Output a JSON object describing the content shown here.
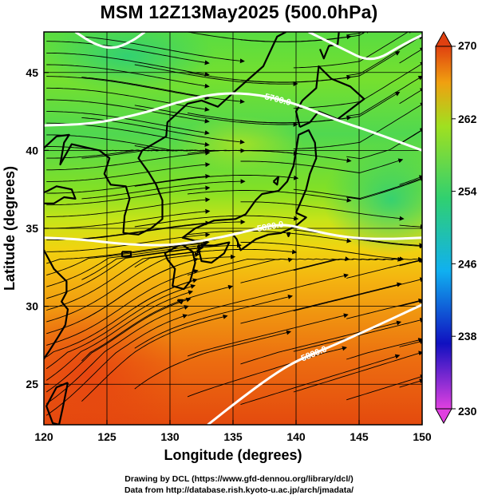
{
  "chart_data": {
    "type": "heatmap",
    "title": "MSM 12Z13May2025 (500.0hPa)",
    "xlabel": "Longitude (degrees)",
    "ylabel": "Latitude  (degrees)",
    "xlim": [
      120,
      150
    ],
    "ylim": [
      22.4,
      47.6
    ],
    "x_ticks": [
      120,
      125,
      130,
      135,
      140,
      145,
      150
    ],
    "y_ticks": [
      25,
      30,
      35,
      40,
      45
    ],
    "colorbar": {
      "min": 230,
      "max": 270,
      "ticks": [
        230,
        238,
        246,
        254,
        262,
        270
      ],
      "colors": [
        "#e040e0",
        "#1010c0",
        "#10b0f0",
        "#30d070",
        "#a0e020",
        "#f0a010",
        "#e04010"
      ]
    },
    "contours": [
      {
        "label": "5700.0",
        "points": [
          [
            120,
            41.6
          ],
          [
            124,
            41.7
          ],
          [
            128,
            42.4
          ],
          [
            131,
            43.2
          ],
          [
            134,
            43.7
          ],
          [
            137,
            43.6
          ],
          [
            140,
            43.0
          ],
          [
            143,
            42.0
          ],
          [
            146,
            41.2
          ],
          [
            150,
            40.0
          ]
        ]
      },
      {
        "label": "5820.0",
        "points": [
          [
            120,
            34.4
          ],
          [
            123,
            34.3
          ],
          [
            126,
            34.0
          ],
          [
            129,
            33.9
          ],
          [
            131,
            34.0
          ],
          [
            134,
            34.4
          ],
          [
            137,
            35.0
          ],
          [
            139,
            35.3
          ],
          [
            141,
            34.9
          ],
          [
            144,
            34.4
          ],
          [
            147,
            34.3
          ],
          [
            150,
            34.4
          ]
        ]
      },
      {
        "label": "5880.0",
        "points": [
          [
            133,
            22.4
          ],
          [
            135.5,
            24.0
          ],
          [
            138,
            25.5
          ],
          [
            140,
            26.5
          ],
          [
            143,
            27.5
          ],
          [
            146,
            28.6
          ],
          [
            150,
            30.1
          ]
        ]
      },
      {
        "label": "",
        "points": [
          [
            122.5,
            47.6
          ],
          [
            124,
            46.8
          ],
          [
            125.5,
            46.5
          ],
          [
            127,
            47.0
          ],
          [
            128,
            47.6
          ]
        ]
      },
      {
        "label": "",
        "points": [
          [
            141,
            47.6
          ],
          [
            143.5,
            46.6
          ],
          [
            146,
            45.6
          ],
          [
            148.5,
            46.8
          ],
          [
            150,
            47.4
          ]
        ]
      }
    ],
    "coastline_points": [
      [
        [
          140.0,
          36.0
        ],
        [
          140.8,
          37.5
        ],
        [
          141.1,
          38.5
        ],
        [
          141.6,
          39.5
        ],
        [
          141.5,
          40.5
        ],
        [
          141.0,
          41.3
        ],
        [
          140.2,
          41.0
        ],
        [
          140.0,
          40.0
        ],
        [
          139.8,
          39.0
        ],
        [
          139.3,
          38.0
        ],
        [
          138.6,
          37.4
        ],
        [
          137.3,
          37.2
        ],
        [
          136.8,
          36.8
        ],
        [
          136.0,
          35.9
        ],
        [
          135.2,
          35.6
        ],
        [
          133.5,
          35.5
        ],
        [
          132.0,
          35.0
        ],
        [
          131.0,
          34.4
        ],
        [
          132.0,
          34.2
        ],
        [
          133.5,
          34.3
        ],
        [
          135.0,
          34.6
        ],
        [
          135.3,
          34.3
        ],
        [
          135.6,
          33.6
        ],
        [
          136.8,
          34.3
        ],
        [
          137.8,
          34.6
        ],
        [
          138.8,
          34.7
        ],
        [
          139.9,
          35.1
        ],
        [
          140.8,
          35.7
        ],
        [
          140.0,
          36.0
        ]
      ],
      [
        [
          130.9,
          34.0
        ],
        [
          131.8,
          33.5
        ],
        [
          132.0,
          32.8
        ],
        [
          131.6,
          31.6
        ],
        [
          131.1,
          31.1
        ],
        [
          130.2,
          31.3
        ],
        [
          130.4,
          32.4
        ],
        [
          129.8,
          33.0
        ],
        [
          129.6,
          33.4
        ],
        [
          130.9,
          34.0
        ]
      ],
      [
        [
          132.2,
          33.9
        ],
        [
          133.5,
          33.9
        ],
        [
          134.7,
          34.1
        ],
        [
          134.3,
          33.4
        ],
        [
          133.3,
          32.8
        ],
        [
          132.5,
          32.9
        ],
        [
          132.2,
          33.9
        ]
      ],
      [
        [
          140.3,
          41.5
        ],
        [
          141.1,
          41.8
        ],
        [
          141.8,
          42.5
        ],
        [
          143.3,
          42.0
        ],
        [
          145.4,
          43.3
        ],
        [
          144.3,
          44.1
        ],
        [
          142.8,
          44.6
        ],
        [
          141.8,
          45.4
        ],
        [
          141.6,
          44.0
        ],
        [
          140.5,
          43.2
        ],
        [
          140.0,
          42.5
        ],
        [
          140.3,
          41.5
        ]
      ],
      [
        [
          126.3,
          34.7
        ],
        [
          127.5,
          34.6
        ],
        [
          128.5,
          35.0
        ],
        [
          129.4,
          35.6
        ],
        [
          129.4,
          36.8
        ],
        [
          128.9,
          37.8
        ],
        [
          128.3,
          38.6
        ],
        [
          127.5,
          39.5
        ],
        [
          127.8,
          40.0
        ],
        [
          129.7,
          40.9
        ],
        [
          129.8,
          41.8
        ],
        [
          130.6,
          42.4
        ],
        [
          131.4,
          43.0
        ],
        [
          132.5,
          43.2
        ],
        [
          133.8,
          42.8
        ],
        [
          135.3,
          43.9
        ],
        [
          137.4,
          45.4
        ],
        [
          138.5,
          47.3
        ],
        [
          139.2,
          47.6
        ]
      ],
      [
        [
          126.3,
          34.7
        ],
        [
          126.4,
          35.8
        ],
        [
          126.8,
          36.9
        ],
        [
          126.5,
          37.7
        ],
        [
          125.3,
          37.8
        ],
        [
          124.8,
          38.5
        ],
        [
          125.2,
          39.5
        ],
        [
          124.4,
          40.0
        ],
        [
          122.2,
          40.4
        ],
        [
          121.3,
          39.1
        ],
        [
          121.6,
          40.5
        ],
        [
          122.0,
          41.0
        ],
        [
          121.0,
          40.9
        ],
        [
          119.8,
          40.0
        ]
      ],
      [
        [
          120.0,
          36.6
        ],
        [
          120.8,
          36.6
        ],
        [
          121.6,
          37.0
        ],
        [
          122.5,
          36.9
        ],
        [
          122.2,
          37.5
        ],
        [
          121.0,
          37.7
        ],
        [
          120.3,
          37.4
        ],
        [
          120.0,
          37.3
        ]
      ],
      [
        [
          120.0,
          33.6
        ],
        [
          120.8,
          32.4
        ],
        [
          121.8,
          31.6
        ],
        [
          121.8,
          30.9
        ],
        [
          121.4,
          30.3
        ],
        [
          121.9,
          29.8
        ],
        [
          121.7,
          28.8
        ],
        [
          121.1,
          28.0
        ],
        [
          120.4,
          27.1
        ],
        [
          119.8,
          26.4
        ]
      ],
      [
        [
          121.9,
          25.1
        ],
        [
          121.0,
          24.8
        ],
        [
          120.2,
          23.6
        ],
        [
          120.7,
          22.5
        ],
        [
          121.2,
          22.4
        ],
        [
          121.5,
          23.5
        ],
        [
          121.9,
          25.1
        ]
      ],
      [
        [
          141.9,
          46.5
        ],
        [
          142.2,
          45.9
        ],
        [
          142.6,
          46.7
        ],
        [
          143.3,
          46.8
        ],
        [
          143.4,
          47.6
        ]
      ],
      [
        [
          126.2,
          33.5
        ],
        [
          126.9,
          33.5
        ],
        [
          126.9,
          33.2
        ],
        [
          126.2,
          33.2
        ],
        [
          126.2,
          33.5
        ]
      ],
      [
        [
          130.6,
          30.4
        ],
        [
          131.0,
          30.4
        ],
        [
          130.9,
          30.2
        ],
        [
          130.6,
          30.4
        ]
      ],
      [
        [
          138.2,
          38.0
        ],
        [
          138.6,
          38.3
        ],
        [
          138.5,
          37.8
        ],
        [
          138.2,
          38.0
        ]
      ],
      [
        [
          139.3,
          34.7
        ],
        [
          139.5,
          34.7
        ],
        [
          139.4,
          34.5
        ],
        [
          139.3,
          34.7
        ]
      ]
    ]
  },
  "axis_labels": {
    "x_title": "Longitude (degrees)",
    "y_title": "Latitude  (degrees)"
  },
  "credits": {
    "line1": "Drawing by DCL (https://www.gfd-dennou.org/library/dcl/)",
    "line2": "Data from http://database.rish.kyoto-u.ac.jp/arch/jmadata/"
  }
}
